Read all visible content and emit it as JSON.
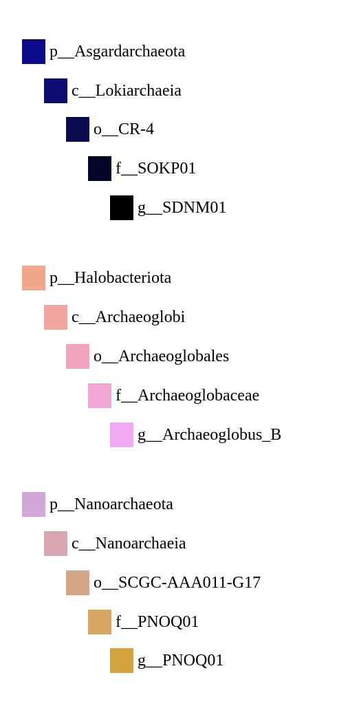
{
  "legend": {
    "groups": [
      {
        "items": [
          {
            "rank": 0,
            "label": "p__Asgardarchaeota",
            "color": "#0a0a8a"
          },
          {
            "rank": 1,
            "label": "c__Lokiarchaeia",
            "color": "#0b0b72"
          },
          {
            "rank": 2,
            "label": "o__CR-4",
            "color": "#0a0a4f"
          },
          {
            "rank": 3,
            "label": "f__SOKP01",
            "color": "#05052b"
          },
          {
            "rank": 4,
            "label": "g__SDNM01",
            "color": "#000000"
          }
        ]
      },
      {
        "items": [
          {
            "rank": 0,
            "label": "p__Halobacteriota",
            "color": "#f2a68a"
          },
          {
            "rank": 1,
            "label": "c__Archaeoglobi",
            "color": "#f2a49e"
          },
          {
            "rank": 2,
            "label": "o__Archaeoglobales",
            "color": "#f2a4bd"
          },
          {
            "rank": 3,
            "label": "f__Archaeoglobaceae",
            "color": "#f1a6d6"
          },
          {
            "rank": 4,
            "label": "g__Archaeoglobus_B",
            "color": "#f0a8f0"
          }
        ]
      },
      {
        "items": [
          {
            "rank": 0,
            "label": "p__Nanoarchaeota",
            "color": "#d5a6d9"
          },
          {
            "rank": 1,
            "label": "c__Nanoarchaeia",
            "color": "#d8a6b2"
          },
          {
            "rank": 2,
            "label": "o__SCGC-AAA011-G17",
            "color": "#d6a486"
          },
          {
            "rank": 3,
            "label": "f__PNOQ01",
            "color": "#d7a662"
          },
          {
            "rank": 4,
            "label": "g__PNOQ01",
            "color": "#d6a43c"
          }
        ]
      }
    ]
  }
}
